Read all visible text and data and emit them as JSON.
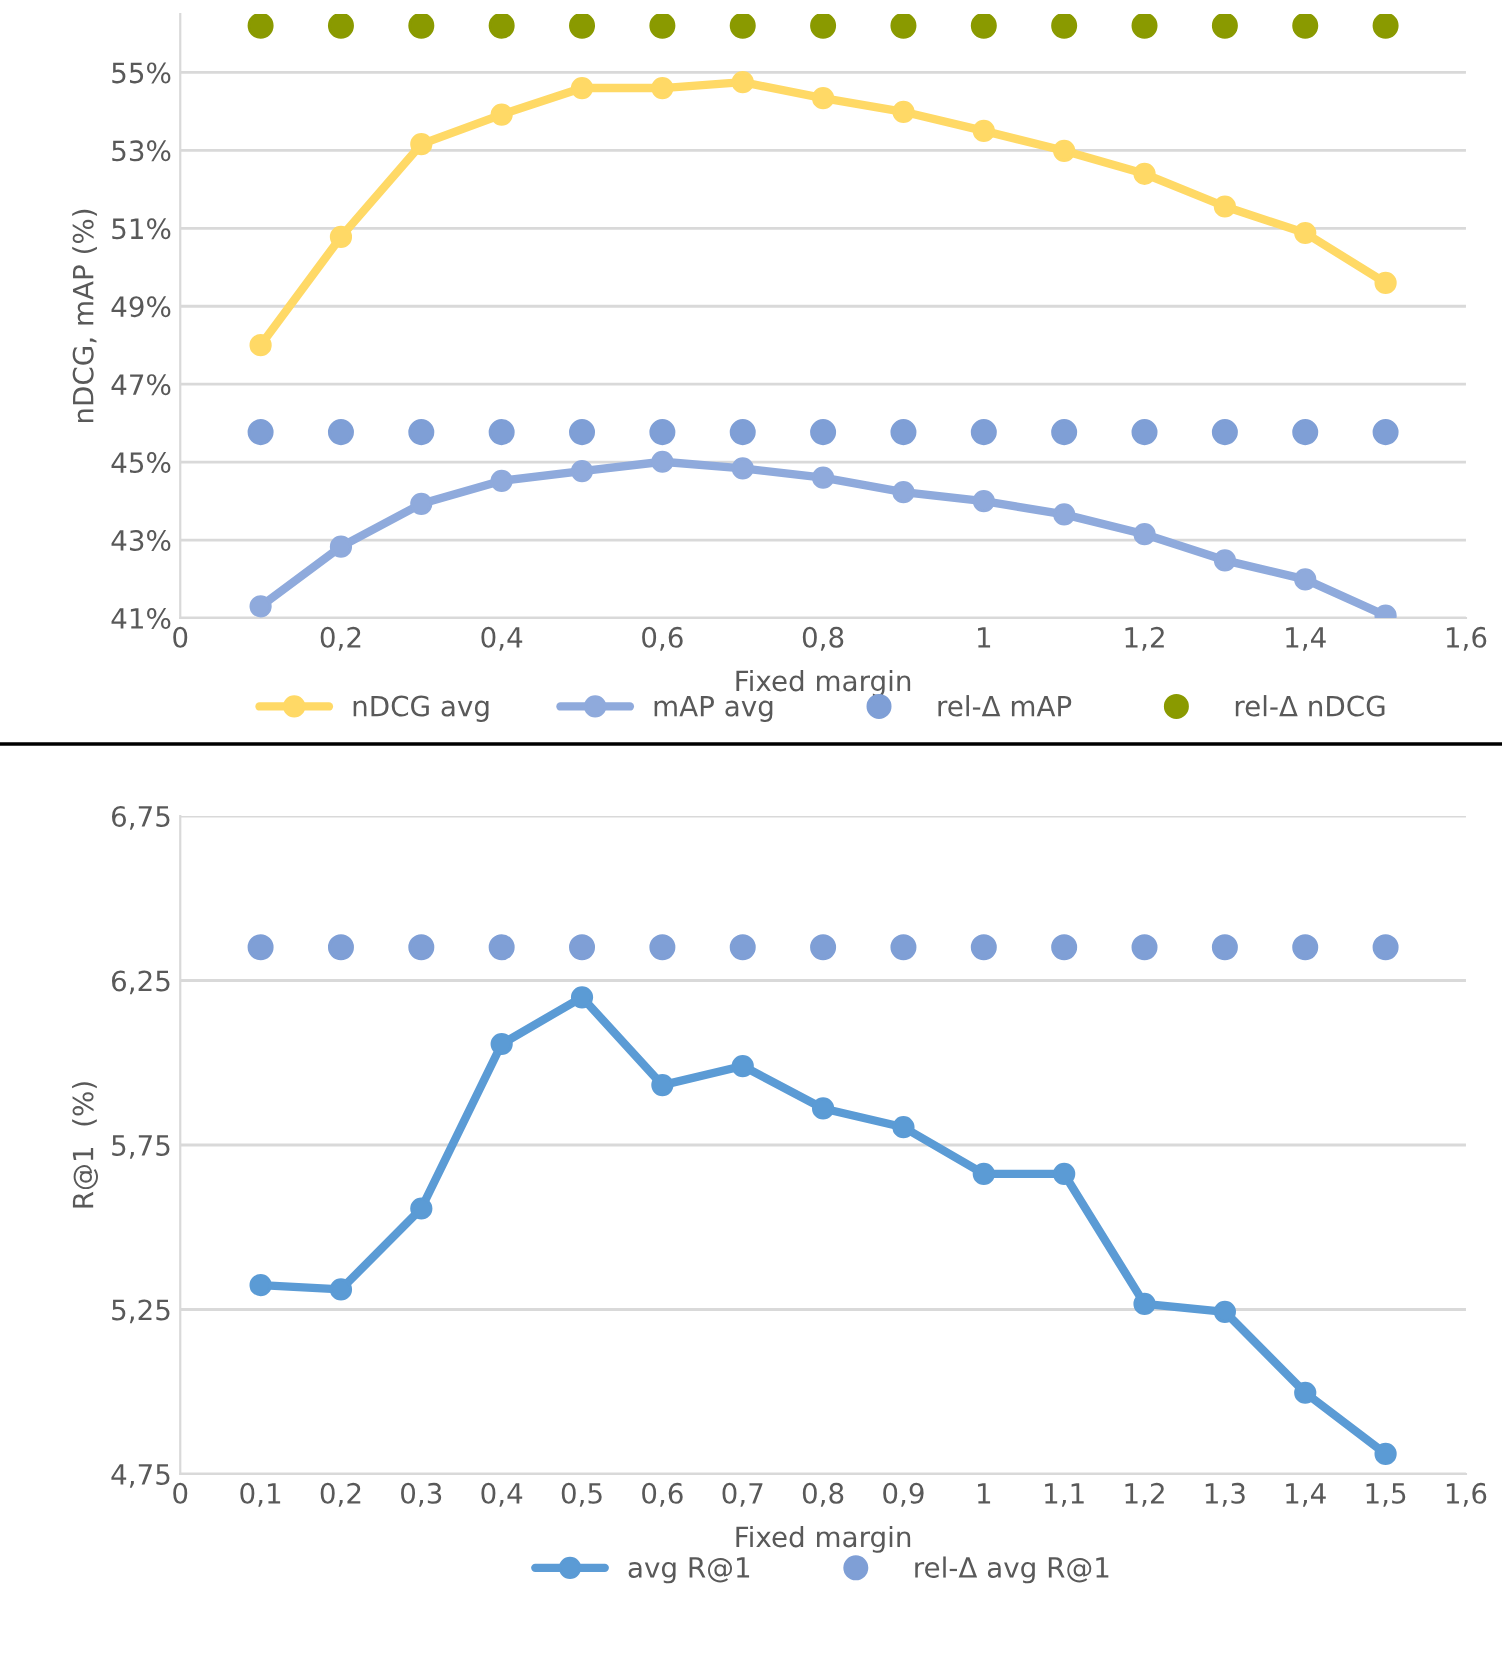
{
  "chart_data": [
    {
      "type": "line",
      "xlabel": "Fixed margin",
      "ylabel": "nDCG, mAP (%)",
      "x": [
        0.1,
        0.2,
        0.3,
        0.4,
        0.5,
        0.6,
        0.7,
        0.8,
        0.9,
        1.0,
        1.1,
        1.2,
        1.3,
        1.4,
        1.5
      ],
      "series": [
        {
          "name": "nDCG avg",
          "color": "#ffd966",
          "marker": "circle",
          "values": [
            48.0,
            50.78,
            53.16,
            53.92,
            54.6,
            54.6,
            54.75,
            54.34,
            53.99,
            53.5,
            52.99,
            52.4,
            51.56,
            50.88,
            49.6
          ]
        },
        {
          "name": "mAP avg",
          "color": "#8faadc",
          "marker": "circle",
          "values": [
            41.3,
            42.83,
            43.93,
            44.52,
            44.77,
            45.01,
            44.84,
            44.6,
            44.23,
            44.0,
            43.66,
            43.15,
            42.48,
            41.99,
            41.06
          ]
        },
        {
          "name": "rel-Δ mAP",
          "type": "scatter",
          "color": "#7f9fd6",
          "marker": "circle",
          "values": [
            45.77,
            45.77,
            45.77,
            45.77,
            45.77,
            45.77,
            45.77,
            45.77,
            45.77,
            45.77,
            45.77,
            45.77,
            45.77,
            45.77,
            45.77
          ]
        },
        {
          "name": "rel-Δ nDCG",
          "type": "scatter",
          "color": "#8a9a00",
          "marker": "circle",
          "values": [
            56.2,
            56.2,
            56.2,
            56.2,
            56.2,
            56.2,
            56.2,
            56.2,
            56.2,
            56.2,
            56.2,
            56.2,
            56.2,
            56.2,
            56.2
          ]
        }
      ],
      "xlim": [
        0,
        1.6
      ],
      "xticks": [
        0,
        {
          "value": 0.2,
          "label": "0,2"
        },
        {
          "value": 0.4,
          "label": "0,4"
        },
        {
          "value": 0.6,
          "label": "0,6"
        },
        {
          "value": 0.8,
          "label": "0,8"
        },
        1,
        {
          "value": 1.2,
          "label": "1,2"
        },
        {
          "value": 1.4,
          "label": "1,4"
        },
        {
          "value": 1.6,
          "label": "1,6"
        }
      ],
      "ylim": [
        41,
        56.5
      ],
      "yticks": [
        {
          "value": 41,
          "label": "41%"
        },
        {
          "value": 43,
          "label": "43%"
        },
        {
          "value": 45,
          "label": "45%"
        },
        {
          "value": 47,
          "label": "47%"
        },
        {
          "value": 49,
          "label": "49%"
        },
        {
          "value": 51,
          "label": "51%"
        },
        {
          "value": 53,
          "label": "53%"
        },
        {
          "value": 55,
          "label": "55%"
        }
      ],
      "grid": "y",
      "legend": "bottom"
    },
    {
      "type": "line",
      "xlabel": "Fixed margin",
      "ylabel": "R@1  (%)",
      "x": [
        0.1,
        0.2,
        0.3,
        0.4,
        0.5,
        0.6,
        0.7,
        0.8,
        0.9,
        1.0,
        1.1,
        1.2,
        1.3,
        1.4,
        1.5
      ],
      "series": [
        {
          "name": "avg R@1",
          "color": "#5b9bd5",
          "marker": "circle",
          "values": [
            5.324,
            5.311,
            5.557,
            6.057,
            6.199,
            5.932,
            5.99,
            5.861,
            5.804,
            5.662,
            5.662,
            5.267,
            5.243,
            4.997,
            4.811
          ]
        },
        {
          "name": "rel-Δ avg R@1",
          "type": "scatter",
          "color": "#7f9fd6",
          "marker": "circle",
          "values": [
            6.351,
            6.351,
            6.351,
            6.351,
            6.351,
            6.351,
            6.351,
            6.351,
            6.351,
            6.351,
            6.351,
            6.351,
            6.351,
            6.351,
            6.351
          ]
        }
      ],
      "xlim": [
        0,
        1.6
      ],
      "xticks": [
        0,
        {
          "value": 0.1,
          "label": "0,1"
        },
        {
          "value": 0.2,
          "label": "0,2"
        },
        {
          "value": 0.3,
          "label": "0,3"
        },
        {
          "value": 0.4,
          "label": "0,4"
        },
        {
          "value": 0.5,
          "label": "0,5"
        },
        {
          "value": 0.6,
          "label": "0,6"
        },
        {
          "value": 0.7,
          "label": "0,7"
        },
        {
          "value": 0.8,
          "label": "0,8"
        },
        {
          "value": 0.9,
          "label": "0,9"
        },
        1,
        {
          "value": 1.1,
          "label": "1,1"
        },
        {
          "value": 1.2,
          "label": "1,2"
        },
        {
          "value": 1.3,
          "label": "1,3"
        },
        {
          "value": 1.4,
          "label": "1,4"
        },
        {
          "value": 1.5,
          "label": "1,5"
        },
        {
          "value": 1.6,
          "label": "1,6"
        }
      ],
      "ylim": [
        4.75,
        6.75
      ],
      "yticks": [
        {
          "value": 4.75,
          "label": "4,75"
        },
        {
          "value": 5.25,
          "label": "5,25"
        },
        {
          "value": 5.75,
          "label": "5,75"
        },
        {
          "value": 6.25,
          "label": "6,25"
        },
        {
          "value": 6.75,
          "label": "6,75"
        }
      ],
      "grid": "y",
      "legend": "bottom"
    }
  ]
}
